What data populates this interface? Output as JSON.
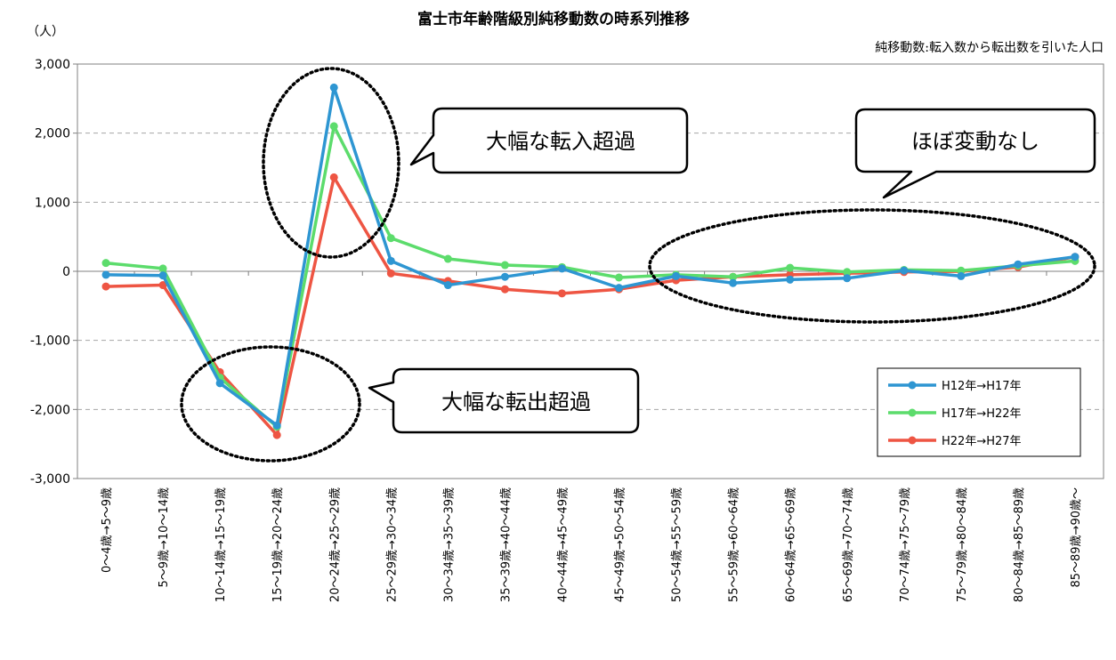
{
  "chart_data": {
    "type": "line",
    "title": "富士市年齢階級別純移動数の時系列推移",
    "subtitle": "純移動数:転入数から転出数を引いた人口",
    "ylabel": "（人）",
    "ylim": [
      -3000,
      3000
    ],
    "yticks": [
      3000,
      2000,
      1000,
      0,
      -1000,
      -2000,
      -3000
    ],
    "ytick_labels": [
      "3,000",
      "2,000",
      "1,000",
      "0",
      "-1,000",
      "-2,000",
      "-3,000"
    ],
    "categories": [
      "0～4歳→5～9歳",
      "5～9歳→10～14歳",
      "10～14歳→15～19歳",
      "15～19歳→20～24歳",
      "20～24歳→25～29歳",
      "25～29歳→30～34歳",
      "30～34歳→35～39歳",
      "35～39歳→40～44歳",
      "40～44歳→45～49歳",
      "45～49歳→50～54歳",
      "50～54歳→55～59歳",
      "55～59歳→60～64歳",
      "60～64歳→65～69歳",
      "65～69歳→70～74歳",
      "70～74歳→75～79歳",
      "75～79歳→80～84歳",
      "80～84歳→85～89歳",
      "85～89歳→90歳～"
    ],
    "series": [
      {
        "name": "H12年→H17年",
        "color": "#2e96d2",
        "values": [
          -50,
          -60,
          -1620,
          -2230,
          2660,
          150,
          -200,
          -80,
          40,
          -240,
          -70,
          -170,
          -120,
          -100,
          10,
          -70,
          100,
          210
        ]
      },
      {
        "name": "H17年→H22年",
        "color": "#5cdc6c",
        "values": [
          120,
          40,
          -1540,
          -2250,
          2100,
          480,
          180,
          90,
          60,
          -90,
          -50,
          -80,
          50,
          -10,
          20,
          10,
          80,
          150
        ]
      },
      {
        "name": "H22年→H27年",
        "color": "#ee5543",
        "values": [
          -220,
          -200,
          -1460,
          -2370,
          1360,
          -30,
          -140,
          -260,
          -320,
          -260,
          -130,
          -80,
          -50,
          -30,
          -10,
          0,
          60,
          210
        ]
      }
    ],
    "grid": "horizontal dashed",
    "legend_position": "bottom-right",
    "annotations": [
      {
        "text": "大幅な転入超過"
      },
      {
        "text": "ほぼ変動なし"
      },
      {
        "text": "大幅な転出超過"
      }
    ]
  }
}
